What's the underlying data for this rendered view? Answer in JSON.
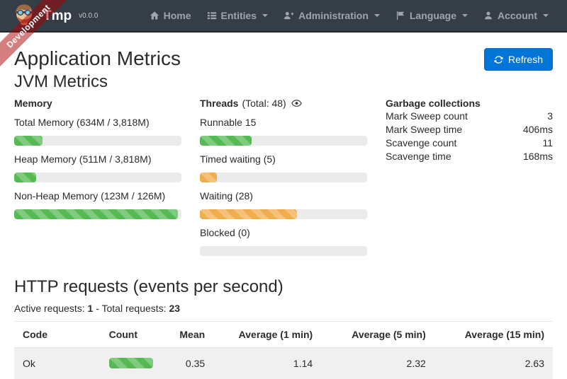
{
  "navbar": {
    "brand": {
      "name": "Tmp",
      "version": "v0.0.0"
    },
    "items": [
      {
        "label": "Home",
        "icon": "home-icon",
        "caret": false
      },
      {
        "label": "Entities",
        "icon": "entities-list-icon",
        "caret": true
      },
      {
        "label": "Administration",
        "icon": "administration-user-plus-icon",
        "caret": true
      },
      {
        "label": "Language",
        "icon": "language-flag-icon",
        "caret": true
      },
      {
        "label": "Account",
        "icon": "account-user-icon",
        "caret": true
      }
    ]
  },
  "ribbon": {
    "label": "Development"
  },
  "page": {
    "title": "Application Metrics",
    "refresh_button": "Refresh"
  },
  "jvm": {
    "title": "JVM Metrics",
    "memory": {
      "title": "Memory",
      "bars": [
        {
          "label": "Total Memory (634M / 3,818M)",
          "percent": 17,
          "color": "#55b954"
        },
        {
          "label": "Heap Memory (511M / 3,818M)",
          "percent": 13,
          "color": "#55b954"
        },
        {
          "label": "Non-Heap Memory (123M / 126M)",
          "percent": 98,
          "color": "#55b954"
        }
      ]
    },
    "threads": {
      "title": "Threads",
      "total": "(Total: 48)",
      "bars": [
        {
          "label": "Runnable 15",
          "percent": 31,
          "color": "#55b954"
        },
        {
          "label": "Timed waiting (5)",
          "percent": 10,
          "color": "#f0ad4e"
        },
        {
          "label": "Waiting (28)",
          "percent": 58,
          "color": "#f0ad4e"
        },
        {
          "label": "Blocked (0)",
          "percent": 0,
          "color": "#d9534f"
        }
      ]
    },
    "garbage": {
      "title": "Garbage collections",
      "rows": [
        {
          "label": "Mark Sweep count",
          "value": "3"
        },
        {
          "label": "Mark Sweep time",
          "value": "406ms"
        },
        {
          "label": "Scavenge count",
          "value": "11"
        },
        {
          "label": "Scavenge time",
          "value": "168ms"
        }
      ]
    }
  },
  "http": {
    "title": "HTTP requests (events per second)",
    "active_label": "Active requests:",
    "active_value": "1",
    "separator": "-",
    "total_label": "Total requests:",
    "total_value": "23",
    "table": {
      "headers": [
        "Code",
        "Count",
        "Mean",
        "Average (1 min)",
        "Average (5 min)",
        "Average (15 min)"
      ],
      "rows": [
        {
          "code": "Ok",
          "count_percent": 100,
          "count_color": "#55b954",
          "mean": "0.35",
          "avg1": "1.14",
          "avg5": "2.32",
          "avg15": "2.63"
        }
      ]
    }
  },
  "colors": {
    "navbar_bg": "#353d47",
    "ribbon_red": "#aa0000",
    "accent_blue": "#0275d8",
    "success_green": "#55b954",
    "warning_orange": "#f0ad4e",
    "track_gray": "#ebebeb"
  }
}
